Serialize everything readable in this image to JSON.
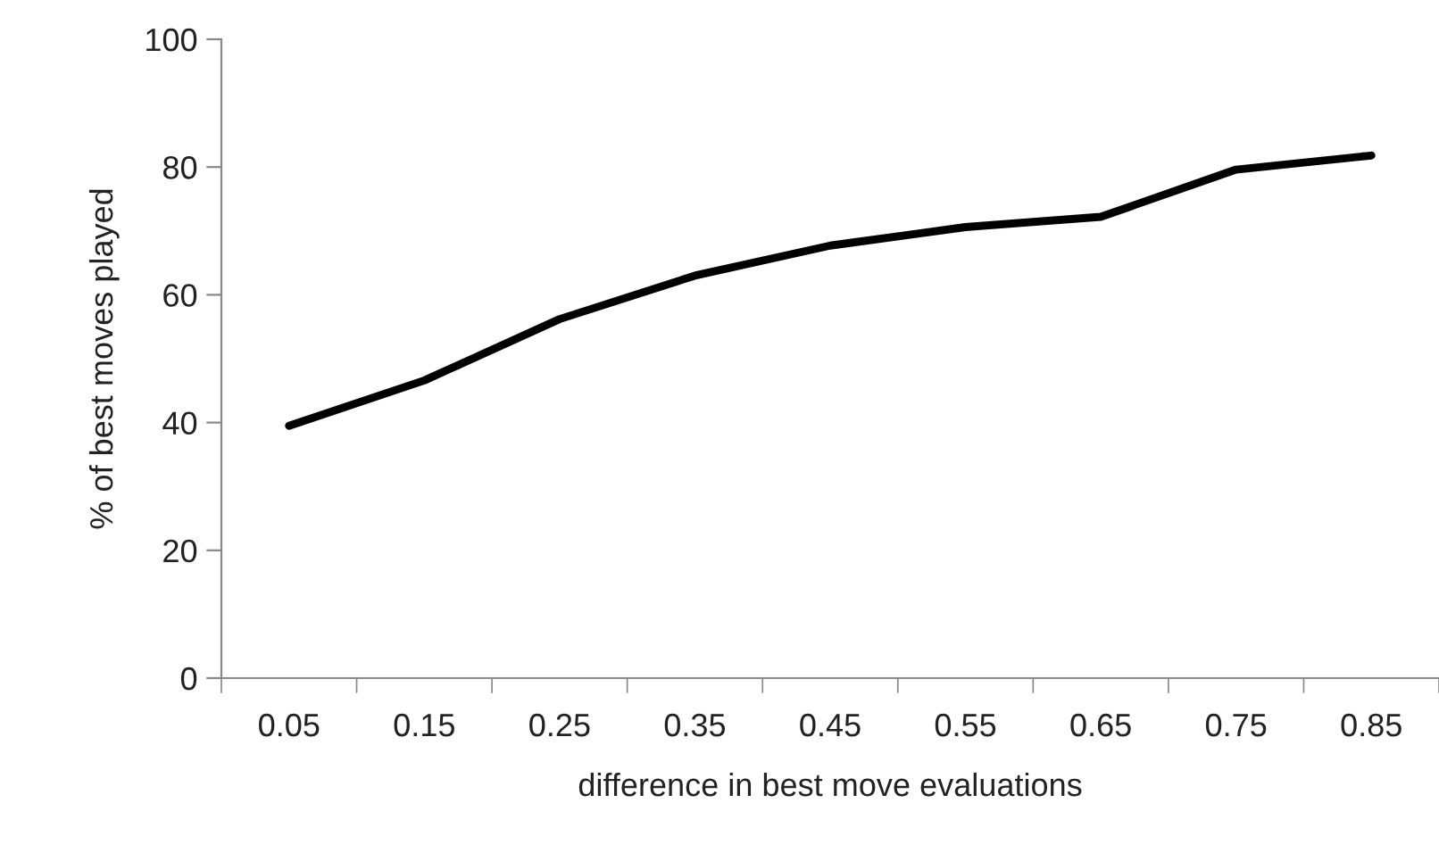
{
  "chart_data": {
    "type": "line",
    "xlabel": "difference in best move evaluations",
    "ylabel": "% of best moves played",
    "categories": [
      "0.05",
      "0.15",
      "0.25",
      "0.35",
      "0.45",
      "0.55",
      "0.65",
      "0.75",
      "0.85"
    ],
    "series": [
      {
        "color": "#000000",
        "values": [
          39.5,
          46.6,
          56.2,
          63.0,
          67.7,
          70.6,
          72.2,
          79.6,
          81.8
        ]
      }
    ],
    "ylim": [
      0,
      100
    ],
    "yticks": [
      0,
      20,
      40,
      60,
      80,
      100
    ],
    "grid": false,
    "marker": "none",
    "line_style": "solid"
  }
}
